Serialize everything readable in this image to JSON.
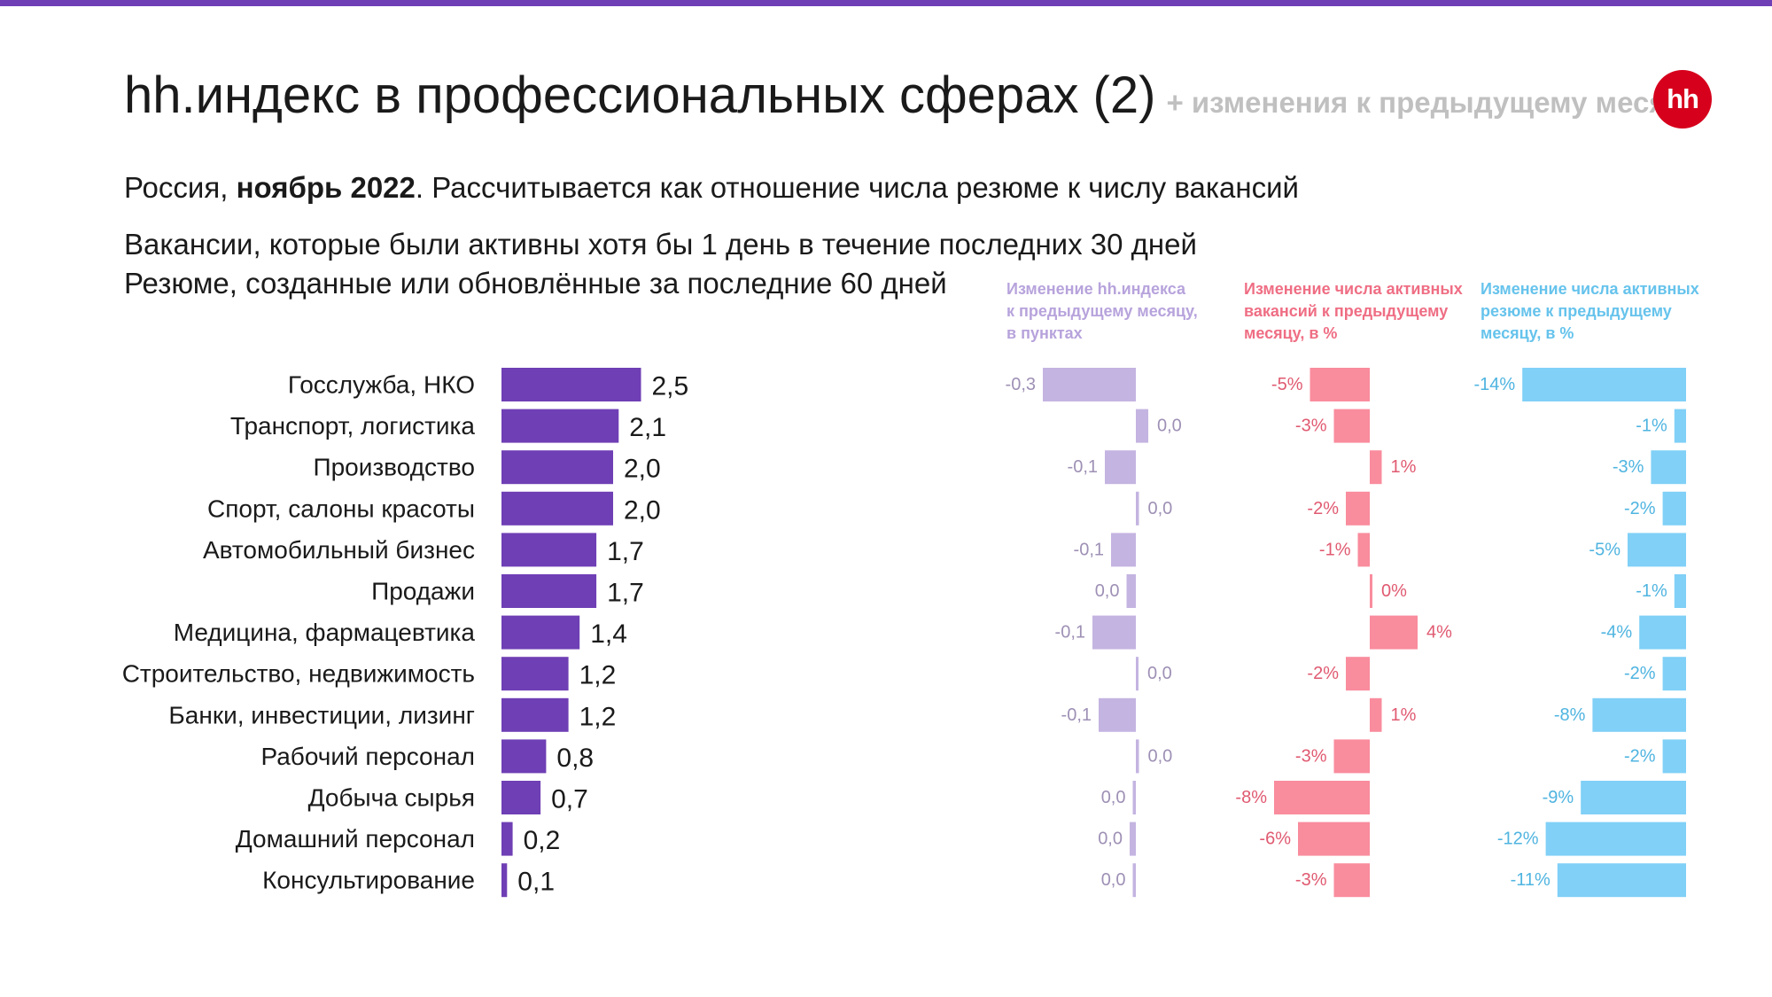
{
  "title": "hh.индекс в профессиональных сферах (2)",
  "title_note": "+ изменения к предыдущему месяцу",
  "logo_text": "hh",
  "subtitle": {
    "prefix": "Россия, ",
    "bold": "ноябрь 2022",
    "suffix": ". Рассчитывается как отношение числа резюме к числу вакансий"
  },
  "notes": [
    "Вакансии, которые были активны хотя бы 1 день в течение последних 30 дней",
    "Резюме, созданные или обновлённые за последние 60 дней"
  ],
  "column_headers": {
    "index_change": [
      "Изменение hh.индекса",
      "к предыдущему месяцу,",
      "в пунктах"
    ],
    "vacancies_change": [
      "Изменение числа активных",
      "вакансий к предыдущему",
      "месяцу, в %"
    ],
    "resumes_change": [
      "Изменение числа активных",
      "резюме к предыдущему",
      "месяцу, в %"
    ]
  },
  "colors": {
    "accent_bar": "#6f3fb5",
    "index_change": "#c4b4e1",
    "index_change_text": "#9e90b5",
    "vacancies": "#f98c9d",
    "vacancies_text": "#e05a71",
    "resumes": "#80d0f7",
    "resumes_text": "#4fb4e0",
    "logo": "#d6001c"
  },
  "chart_data": {
    "type": "bar",
    "orientation": "horizontal",
    "categories": [
      "Госслужба, НКО",
      "Транспорт, логистика",
      "Производство",
      "Спорт, салоны красоты",
      "Автомобильный бизнес",
      "Продажи",
      "Медицина, фармацевтика",
      "Строительство, недвижимость",
      "Банки, инвестиции, лизинг",
      "Рабочий персонал",
      "Добыча сырья",
      "Домашний персонал",
      "Консультирование"
    ],
    "series": [
      {
        "key": "index",
        "values": [
          2.5,
          2.1,
          2.0,
          2.0,
          1.7,
          1.7,
          1.4,
          1.2,
          1.2,
          0.8,
          0.7,
          0.2,
          0.1
        ],
        "labels": [
          "2,5",
          "2,1",
          "2,0",
          "2,0",
          "1,7",
          "1,7",
          "1,4",
          "1,2",
          "1,2",
          "0,8",
          "0,7",
          "0,2",
          "0,1"
        ]
      },
      {
        "key": "index_change",
        "values": [
          -0.3,
          0.04,
          -0.1,
          0.01,
          -0.08,
          -0.03,
          -0.14,
          0.0,
          -0.12,
          0.01,
          -0.01,
          -0.02,
          -0.01
        ],
        "labels": [
          "-0,3",
          "0,0",
          "-0,1",
          "0,0",
          "-0,1",
          "0,0",
          "-0,1",
          "0,0",
          "-0,1",
          "0,0",
          "0,0",
          "0,0",
          "0,0"
        ]
      },
      {
        "key": "vacancies_change",
        "values": [
          -5,
          -3,
          1,
          -2,
          -1,
          0,
          4,
          -2,
          1,
          -3,
          -8,
          -6,
          -3
        ],
        "labels": [
          "-5%",
          "-3%",
          "1%",
          "-2%",
          "-1%",
          "0%",
          "4%",
          "-2%",
          "1%",
          "-3%",
          "-8%",
          "-6%",
          "-3%"
        ]
      },
      {
        "key": "resumes_change",
        "values": [
          -14,
          -1,
          -3,
          -2,
          -5,
          -1,
          -4,
          -2,
          -8,
          -2,
          -9,
          -12,
          -11
        ],
        "labels": [
          "-14%",
          "-1%",
          "-3%",
          "-2%",
          "-5%",
          "-1%",
          "-4%",
          "-2%",
          "-8%",
          "-2%",
          "-9%",
          "-12%",
          "-11%"
        ]
      }
    ]
  }
}
